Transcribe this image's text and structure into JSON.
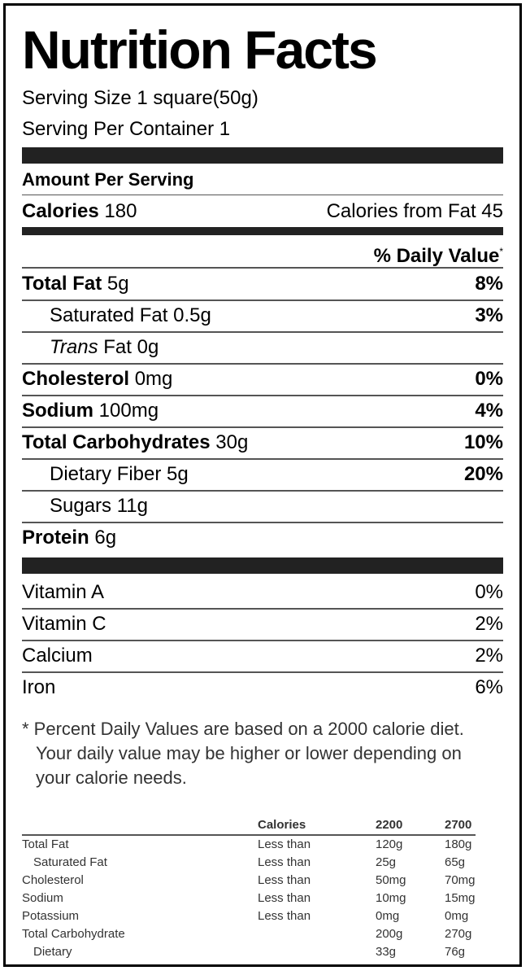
{
  "title": "Nutrition Facts",
  "serving_size": "Serving Size 1 square(50g)",
  "servings_per_container": "Serving Per Container 1",
  "amount_per_serving": "Amount Per Serving",
  "calories": {
    "label": "Calories",
    "value": "180",
    "from_fat": "Calories from Fat 45"
  },
  "daily_value_header": "% Daily Value",
  "daily_value_mark": "*",
  "nutrients": [
    {
      "name": "Total Fat",
      "amount": "5g",
      "dv": "8%"
    },
    {
      "name": "Saturated Fat",
      "amount": "0.5g",
      "dv": "3%"
    },
    {
      "name": "Trans",
      "name_suffix": "Fat",
      "amount": "0g",
      "dv": ""
    },
    {
      "name": "Cholesterol",
      "amount": "0mg",
      "dv": "0%"
    },
    {
      "name": "Sodium",
      "amount": "100mg",
      "dv": "4%"
    },
    {
      "name": "Total Carbohydrates",
      "amount": "30g",
      "dv": "10%"
    },
    {
      "name": "Dietary Fiber",
      "amount": "5g",
      "dv": "20%"
    },
    {
      "name": "Sugars",
      "amount": "11g",
      "dv": ""
    },
    {
      "name": "Protein",
      "amount": "6g",
      "dv": ""
    }
  ],
  "vitamins": [
    {
      "name": "Vitamin A",
      "dv": "0%"
    },
    {
      "name": "Vitamin C",
      "dv": "2%"
    },
    {
      "name": "Calcium",
      "dv": "2%"
    },
    {
      "name": "Iron",
      "dv": "6%"
    }
  ],
  "footnote": {
    "line1": "* Percent Daily Values are based on a 2000 calorie diet.",
    "line2": "Your daily value may be higher or lower depending on",
    "line3": "your calorie needs."
  },
  "reference_table": {
    "headers": [
      "",
      "Calories",
      "2200",
      "2700"
    ],
    "rows": [
      [
        "Total Fat",
        "Less than",
        "120g",
        "180g"
      ],
      [
        "Saturated Fat",
        "Less than",
        "25g",
        "65g"
      ],
      [
        "Cholesterol",
        "Less than",
        "50mg",
        "70mg"
      ],
      [
        "Sodium",
        "Less than",
        "10mg",
        "15mg"
      ],
      [
        "Potassium",
        "Less than",
        "0mg",
        "0mg"
      ],
      [
        "Total Carbohydrate",
        "",
        "200g",
        "270g"
      ],
      [
        "Dietary",
        "",
        "33g",
        "76g"
      ]
    ]
  }
}
